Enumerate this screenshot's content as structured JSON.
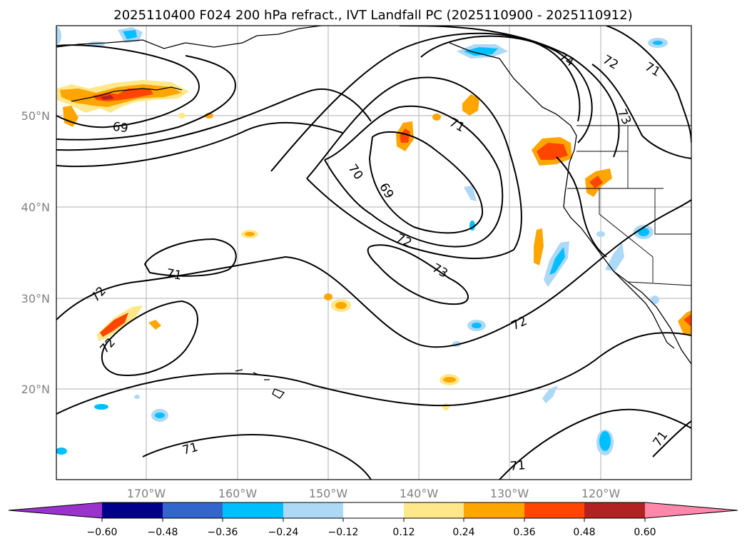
{
  "title": "2025110400 F024 200 hPa refract., IVT Landfall PC (2025110900 - 2025110912)",
  "latitude_labels": [
    "50°N",
    "40°N",
    "30°N",
    "20°N"
  ],
  "longitude_labels": [
    "170°W",
    "160°W",
    "150°W",
    "140°W",
    "130°W",
    "120°W"
  ],
  "contour_labels": [
    "69",
    "69",
    "70",
    "71",
    "71",
    "71",
    "71",
    "71",
    "71",
    "72",
    "72",
    "72",
    "72",
    "72",
    "73",
    "73",
    "74"
  ],
  "colorbar": {
    "tick_labels": [
      "−0.60",
      "−0.48",
      "−0.36",
      "−0.24",
      "−0.12",
      "0.12",
      "0.24",
      "0.36",
      "0.48",
      "0.60"
    ],
    "colors": [
      "#9933cc",
      "#00008b",
      "#3366cc",
      "#00bfff",
      "#add8f6",
      "#ffffff",
      "#ffe88a",
      "#ffa500",
      "#ff4500",
      "#b22222",
      "#ff88aa"
    ]
  },
  "shading_colors": {
    "light_yellow": "#ffe88a",
    "orange": "#ffa500",
    "red_orange": "#ff4500",
    "dark_red": "#b22222",
    "light_blue": "#add8f6",
    "cyan_blue": "#00bfff"
  }
}
